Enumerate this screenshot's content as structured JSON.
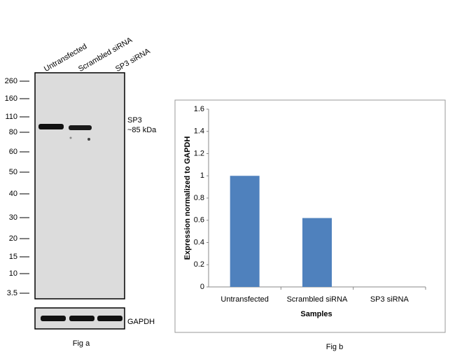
{
  "blot": {
    "lanes": [
      "Untransfected",
      "Scrambled siRNA",
      "SP3  siRNA"
    ],
    "markers": [
      "260",
      "160",
      "110",
      "80",
      "60",
      "50",
      "40",
      "30",
      "20",
      "15",
      "10",
      "3.5"
    ],
    "band_label": "SP3",
    "band_size": "~85 kDa",
    "loading_label": "GAPDH",
    "caption": "Fig a"
  },
  "chart_data": {
    "type": "bar",
    "caption": "Fig b",
    "x_label": "Samples",
    "y_label": "Expression normalized to GAPDH",
    "categories": [
      "Untransfected",
      "Scrambled siRNA",
      "SP3 siRNA"
    ],
    "values": [
      1,
      0.62,
      0
    ],
    "color": "#4f81bd",
    "ylim": [
      0,
      1.6
    ],
    "yticks": [
      0,
      0.2,
      0.4,
      0.6,
      0.8,
      1,
      1.2,
      1.4,
      1.6
    ]
  }
}
